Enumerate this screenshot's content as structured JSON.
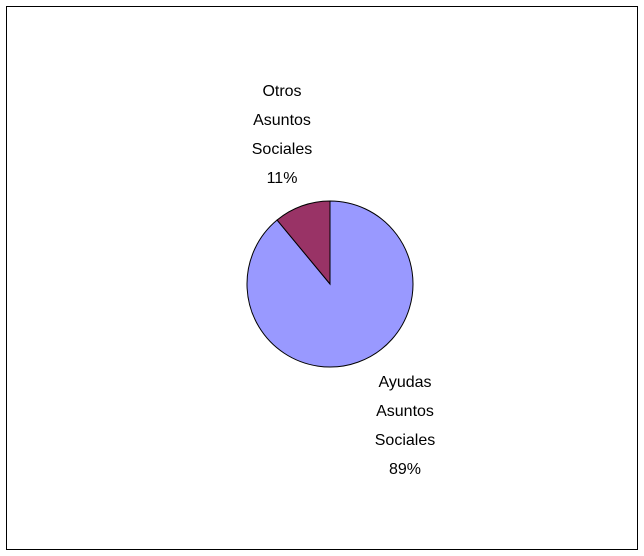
{
  "chart_data": {
    "type": "pie",
    "categories": [
      "Ayudas Asuntos Sociales",
      "Otros Asuntos Sociales"
    ],
    "values": [
      89,
      11
    ],
    "value_labels": [
      "89%",
      "11%"
    ],
    "colors": [
      "#9999ff",
      "#993366"
    ]
  }
}
